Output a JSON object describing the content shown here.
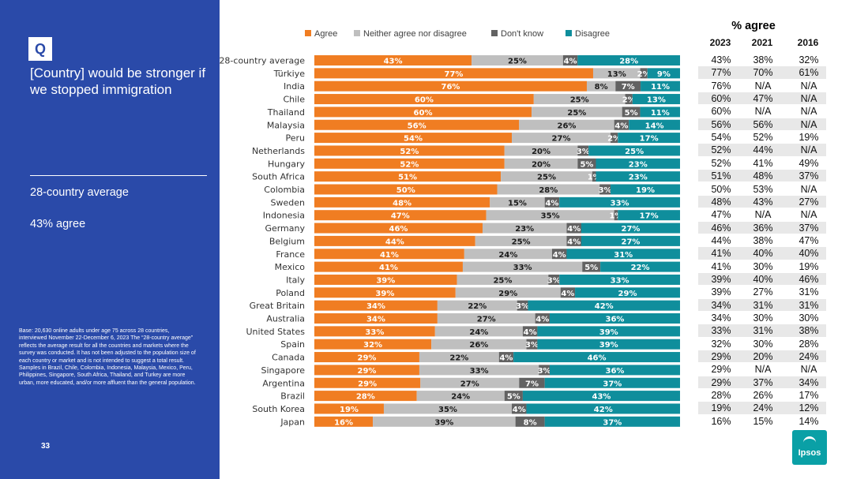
{
  "sidebar": {
    "badge": "Q",
    "question": "[Country] would be stronger if we stopped immigration",
    "average_label": "28-country average",
    "average_value": "43% agree",
    "base_note": "Base: 20,630 online adults under age 75 across 28 countries, interviewed November 22-December 6, 2023 The “28-country average” reflects the average result for all the countries and markets where the survey was conducted. It has not been adjusted to the population size of each country or market and is not intended to suggest a total result. Samples in Brazil, Chile, Colombia, Indonesia, Malaysia, Mexico, Peru, Philippines, Singapore, South Africa, Thailand, and Turkey are more urban, more educated, and/or more affluent than the general population.",
    "page_number": "33"
  },
  "legend": [
    {
      "label": "Agree",
      "color": "#f07d22"
    },
    {
      "label": "Neither agree nor disagree",
      "color": "#bfbfbf"
    },
    {
      "label": "Don't know",
      "color": "#626262"
    },
    {
      "label": "Disagree",
      "color": "#0f8e9c"
    }
  ],
  "trend_table": {
    "title": "% agree",
    "years": [
      "2023",
      "2021",
      "2016"
    ],
    "rows": [
      [
        "43%",
        "38%",
        "32%"
      ],
      [
        "77%",
        "70%",
        "61%"
      ],
      [
        "76%",
        "N/A",
        "N/A"
      ],
      [
        "60%",
        "47%",
        "N/A"
      ],
      [
        "60%",
        "N/A",
        "N/A"
      ],
      [
        "56%",
        "56%",
        "N/A"
      ],
      [
        "54%",
        "52%",
        "19%"
      ],
      [
        "52%",
        "44%",
        "N/A"
      ],
      [
        "52%",
        "41%",
        "49%"
      ],
      [
        "51%",
        "48%",
        "37%"
      ],
      [
        "50%",
        "53%",
        "N/A"
      ],
      [
        "48%",
        "43%",
        "27%"
      ],
      [
        "47%",
        "N/A",
        "N/A"
      ],
      [
        "46%",
        "36%",
        "37%"
      ],
      [
        "44%",
        "38%",
        "47%"
      ],
      [
        "41%",
        "40%",
        "40%"
      ],
      [
        "41%",
        "30%",
        "19%"
      ],
      [
        "39%",
        "40%",
        "46%"
      ],
      [
        "39%",
        "27%",
        "31%"
      ],
      [
        "34%",
        "31%",
        "31%"
      ],
      [
        "34%",
        "30%",
        "30%"
      ],
      [
        "33%",
        "31%",
        "38%"
      ],
      [
        "32%",
        "30%",
        "28%"
      ],
      [
        "29%",
        "20%",
        "24%"
      ],
      [
        "29%",
        "N/A",
        "N/A"
      ],
      [
        "29%",
        "37%",
        "34%"
      ],
      [
        "28%",
        "26%",
        "17%"
      ],
      [
        "19%",
        "24%",
        "12%"
      ],
      [
        "16%",
        "15%",
        "14%"
      ]
    ]
  },
  "logo": "Ipsos",
  "chart_data": {
    "type": "bar",
    "orientation": "horizontal",
    "stacked": true,
    "xlim": [
      0,
      100
    ],
    "categories": [
      "28-country average",
      "Türkiye",
      "India",
      "Chile",
      "Thailand",
      "Malaysia",
      "Peru",
      "Netherlands",
      "Hungary",
      "South Africa",
      "Colombia",
      "Sweden",
      "Indonesia",
      "Germany",
      "Belgium",
      "France",
      "Mexico",
      "Italy",
      "Poland",
      "Great Britain",
      "Australia",
      "United States",
      "Spain",
      "Canada",
      "Singapore",
      "Argentina",
      "Brazil",
      "South Korea",
      "Japan"
    ],
    "series": [
      {
        "name": "Agree",
        "values": [
          43,
          77,
          76,
          60,
          60,
          56,
          54,
          52,
          52,
          51,
          50,
          48,
          47,
          46,
          44,
          41,
          41,
          39,
          39,
          34,
          34,
          33,
          32,
          29,
          29,
          29,
          28,
          19,
          16
        ]
      },
      {
        "name": "Neither agree nor disagree",
        "values": [
          25,
          13,
          8,
          25,
          25,
          26,
          27,
          20,
          20,
          25,
          28,
          15,
          35,
          23,
          25,
          24,
          33,
          25,
          29,
          22,
          27,
          24,
          26,
          22,
          33,
          27,
          24,
          35,
          39
        ]
      },
      {
        "name": "Don't know",
        "values": [
          4,
          2,
          7,
          2,
          5,
          4,
          2,
          3,
          5,
          1,
          3,
          4,
          1,
          4,
          4,
          4,
          5,
          3,
          4,
          3,
          4,
          4,
          3,
          4,
          3,
          7,
          5,
          4,
          8
        ]
      },
      {
        "name": "Disagree",
        "values": [
          28,
          9,
          11,
          13,
          11,
          14,
          17,
          25,
          23,
          23,
          19,
          33,
          17,
          27,
          27,
          31,
          22,
          33,
          29,
          42,
          36,
          39,
          39,
          46,
          36,
          37,
          43,
          42,
          37
        ]
      }
    ]
  }
}
